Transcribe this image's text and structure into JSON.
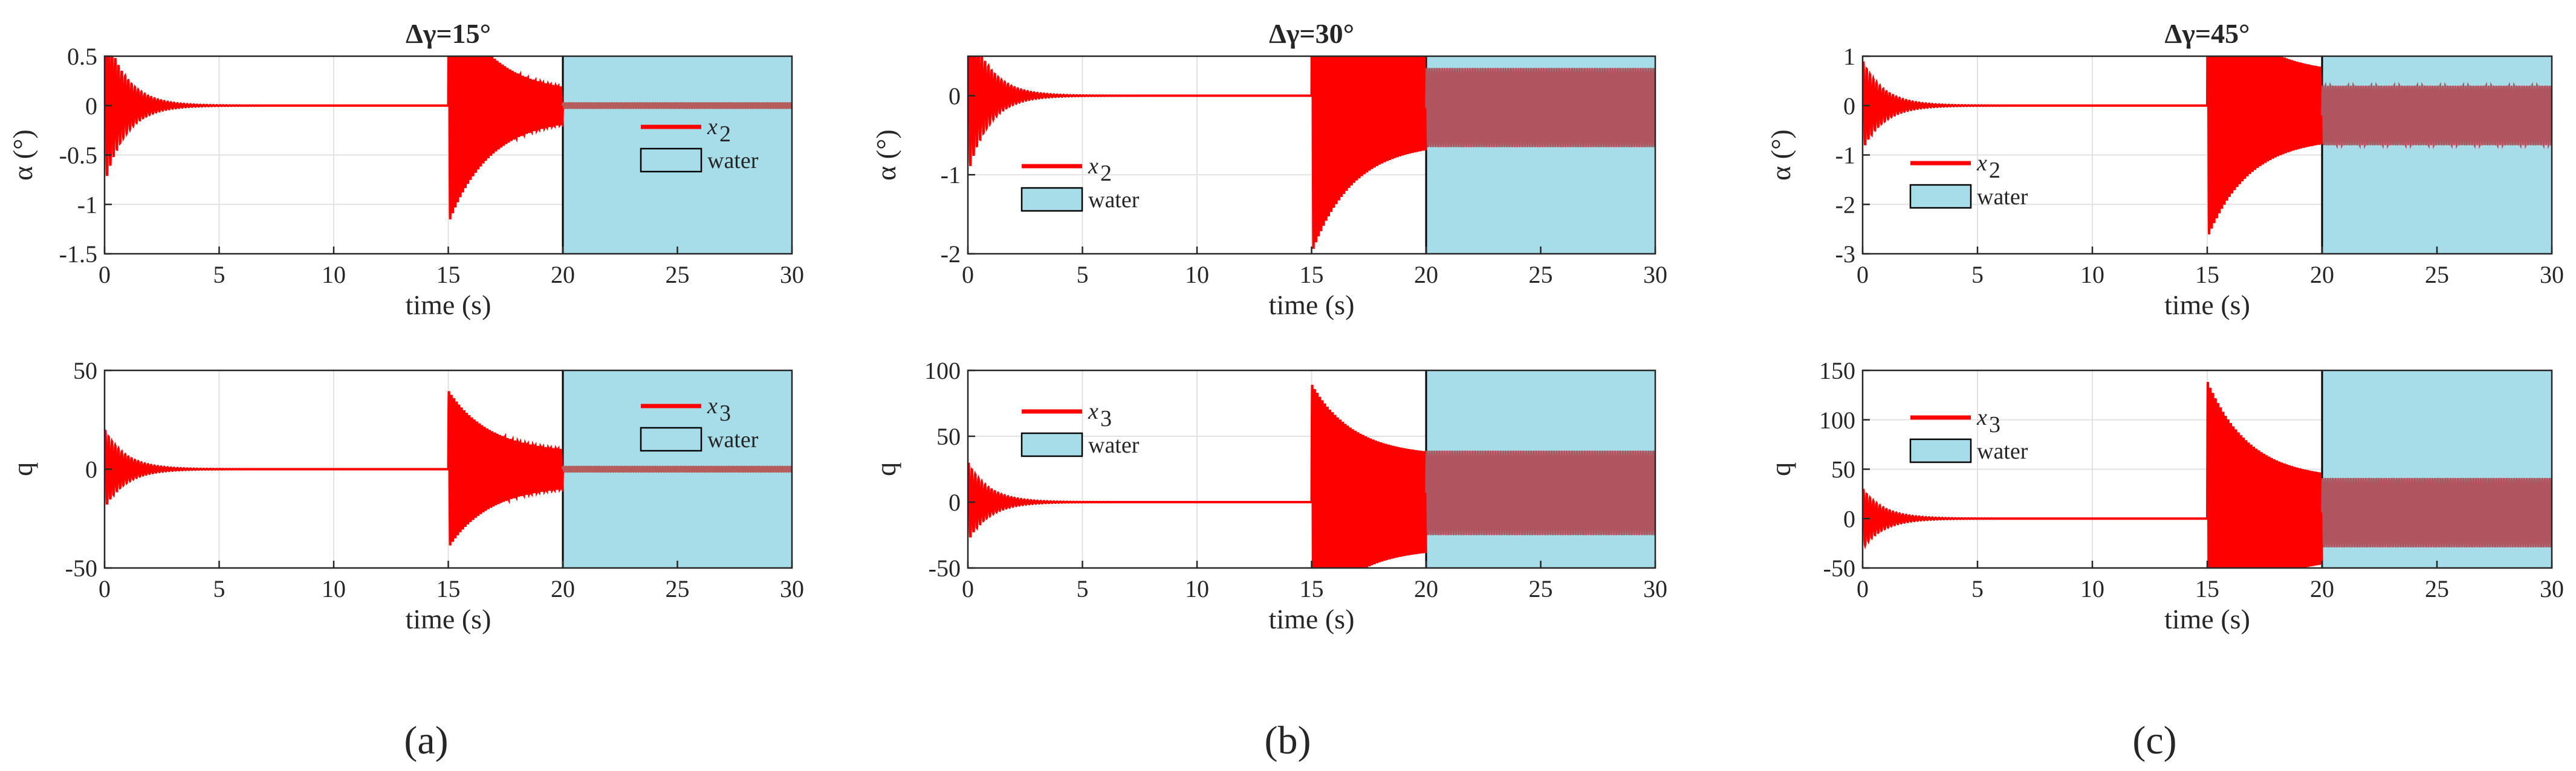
{
  "figure": {
    "subfigure_labels": [
      "(a)",
      "(b)",
      "(c)"
    ]
  },
  "colors": {
    "signal": "#ff0000",
    "water_fill": "#a6dde9",
    "overlap": "#b05460",
    "axis": "#262626",
    "grid": "#e2e2e2"
  },
  "chart_data": [
    {
      "type": "line",
      "title": "Δγ=15°",
      "xlabel": "time (s)",
      "ylabel": "α (°)",
      "xlim": [
        0,
        30
      ],
      "ylim": [
        -1.5,
        0.5
      ],
      "xticks": [
        0,
        5,
        10,
        15,
        20,
        25,
        30
      ],
      "yticks": [
        -1.5,
        -1,
        -0.5,
        0,
        0.5
      ],
      "ytick_labels": [
        "-1.5",
        "-1",
        "-0.5",
        "0",
        "0.5"
      ],
      "water_region": [
        20,
        30
      ],
      "legend": {
        "position": "center-right",
        "entries": [
          "x",
          "water"
        ],
        "subscript": "2"
      },
      "signal": {
        "init_amp": 0.8,
        "offset": 0,
        "step_time": 15,
        "peak_amp": 1.2,
        "amp_at_20": 0.12,
        "water_amp": 0.02,
        "water_mid": 0,
        "water_overlay": false
      }
    },
    {
      "type": "line",
      "title": "",
      "xlabel": "time (s)",
      "ylabel": "q",
      "xlim": [
        0,
        30
      ],
      "ylim": [
        -50,
        50
      ],
      "xticks": [
        0,
        5,
        10,
        15,
        20,
        25,
        30
      ],
      "yticks": [
        -50,
        0,
        50
      ],
      "ytick_labels": [
        "-50",
        "0",
        "50"
      ],
      "water_region": [
        20,
        30
      ],
      "legend": {
        "position": "top-right",
        "entries": [
          "x",
          "water"
        ],
        "subscript": "3"
      },
      "signal": {
        "init_amp": 20,
        "offset": 0,
        "step_time": 15,
        "peak_amp": 40,
        "amp_at_20": 8,
        "water_amp": 1,
        "water_mid": 0,
        "water_overlay": false
      }
    },
    {
      "type": "line",
      "title": "Δγ=30°",
      "xlabel": "time (s)",
      "ylabel": "α (°)",
      "xlim": [
        0,
        30
      ],
      "ylim": [
        -2,
        0.5
      ],
      "xticks": [
        0,
        5,
        10,
        15,
        20,
        25,
        30
      ],
      "yticks": [
        -2,
        -1,
        0
      ],
      "ytick_labels": [
        "-2",
        "-1",
        "0"
      ],
      "water_region": [
        20,
        30
      ],
      "legend": {
        "position": "center-left",
        "entries": [
          "x",
          "water"
        ],
        "subscript": "2"
      },
      "signal": {
        "init_amp": 1.0,
        "offset": 0,
        "step_time": 15,
        "peak_amp": 2.0,
        "amp_at_20": 0.6,
        "water_amp": 0.5,
        "water_mid": -0.15,
        "water_overlay": true
      }
    },
    {
      "type": "line",
      "title": "",
      "xlabel": "time (s)",
      "ylabel": "q",
      "xlim": [
        0,
        30
      ],
      "ylim": [
        -50,
        100
      ],
      "xticks": [
        0,
        5,
        10,
        15,
        20,
        25,
        30
      ],
      "yticks": [
        -50,
        0,
        50,
        100
      ],
      "ytick_labels": [
        "-50",
        "0",
        "50",
        "100"
      ],
      "water_region": [
        20,
        30
      ],
      "legend": {
        "position": "top-left",
        "entries": [
          "x",
          "water"
        ],
        "subscript": "3"
      },
      "signal": {
        "init_amp": 30,
        "offset": 0,
        "step_time": 15,
        "peak_amp": 90,
        "amp_at_20": 35,
        "water_amp": 32,
        "water_mid": 7,
        "water_overlay": true
      }
    },
    {
      "type": "line",
      "title": "Δγ=45°",
      "xlabel": "time (s)",
      "ylabel": "α (°)",
      "xlim": [
        0,
        30
      ],
      "ylim": [
        -3,
        1
      ],
      "xticks": [
        0,
        5,
        10,
        15,
        20,
        25,
        30
      ],
      "yticks": [
        -3,
        -2,
        -1,
        0,
        1
      ],
      "ytick_labels": [
        "-3",
        "-2",
        "-1",
        "0",
        "1"
      ],
      "water_region": [
        20,
        30
      ],
      "legend": {
        "position": "center-left",
        "entries": [
          "x",
          "water"
        ],
        "subscript": "2"
      },
      "signal": {
        "init_amp": 0.9,
        "offset": 0,
        "step_time": 15,
        "peak_amp": 2.7,
        "amp_at_20": 0.65,
        "water_amp": 0.6,
        "water_mid": -0.2,
        "water_overlay": true
      }
    },
    {
      "type": "line",
      "title": "",
      "xlabel": "time (s)",
      "ylabel": "q",
      "xlim": [
        0,
        30
      ],
      "ylim": [
        -50,
        150
      ],
      "xticks": [
        0,
        5,
        10,
        15,
        20,
        25,
        30
      ],
      "yticks": [
        -50,
        0,
        50,
        100,
        150
      ],
      "ytick_labels": [
        "-50",
        "0",
        "50",
        "100",
        "150"
      ],
      "water_region": [
        20,
        30
      ],
      "legend": {
        "position": "top-left",
        "entries": [
          "x",
          "water"
        ],
        "subscript": "3"
      },
      "signal": {
        "init_amp": 30,
        "offset": 0,
        "step_time": 15,
        "peak_amp": 140,
        "amp_at_20": 40,
        "water_amp": 35,
        "water_mid": 6,
        "water_overlay": true
      }
    }
  ]
}
